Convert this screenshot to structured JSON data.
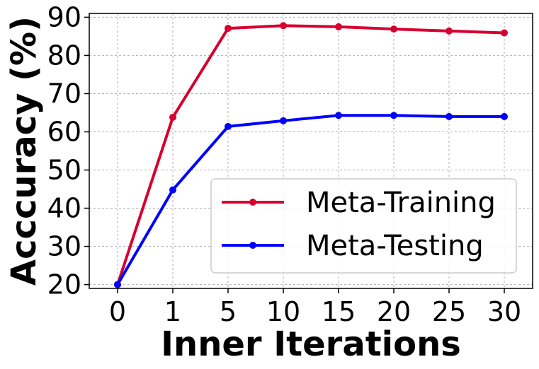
{
  "chart_data": {
    "type": "line",
    "xlabel": "Inner Iterations",
    "ylabel": "Acccuracy (%)",
    "categories": [
      "0",
      "1",
      "5",
      "10",
      "15",
      "20",
      "25",
      "30"
    ],
    "ylim": [
      19,
      91
    ],
    "yticks": [
      20,
      30,
      40,
      50,
      60,
      70,
      80,
      90
    ],
    "grid": true,
    "legend_position": "lower-right",
    "series": [
      {
        "name": "Meta-Training",
        "color": "#d6002f",
        "values": [
          20,
          63.8,
          87.1,
          87.8,
          87.5,
          86.9,
          86.4,
          85.9
        ]
      },
      {
        "name": "Meta-Testing",
        "color": "#0000ff",
        "values": [
          20,
          44.8,
          61.4,
          62.9,
          64.3,
          64.3,
          64.0,
          64.0
        ]
      }
    ]
  }
}
